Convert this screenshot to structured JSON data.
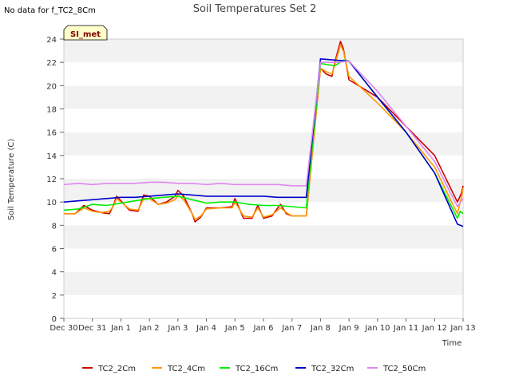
{
  "header": {
    "no_data_note": "No data for f_TC2_8Cm"
  },
  "chart_data": {
    "type": "line",
    "title": "Soil Temperatures Set 2",
    "xlabel": "Time",
    "ylabel": "Soil Temperature (C)",
    "ylim": [
      0,
      24
    ],
    "yticks": [
      0,
      2,
      4,
      6,
      8,
      10,
      12,
      14,
      16,
      18,
      20,
      22,
      24
    ],
    "xlim": [
      0,
      14
    ],
    "xtick_labels": [
      "Dec 30",
      "Dec 31",
      "Jan 1",
      "Jan 2",
      "Jan 3",
      "Jan 4",
      "Jan 5",
      "Jan 6",
      "Jan 7",
      "Jan 8",
      "Jan 9",
      "Jan 10",
      "Jan 11",
      "Jan 12",
      "Jan 13"
    ],
    "xtick_values": [
      0,
      1,
      2,
      3,
      4,
      5,
      6,
      7,
      8,
      9,
      10,
      11,
      12,
      13,
      14
    ],
    "grid": "horizontal alternating bands",
    "legend_position": "bottom",
    "annotation_box": {
      "label": "SI_met",
      "bg": "#ffffcc",
      "text_color": "#800000"
    },
    "series": [
      {
        "name": "TC2_2Cm",
        "color": "#cc0000",
        "x": [
          0.0,
          0.4,
          0.7,
          1.0,
          1.3,
          1.6,
          1.75,
          1.85,
          2.0,
          2.3,
          2.6,
          2.8,
          3.0,
          3.3,
          3.6,
          3.9,
          4.0,
          4.2,
          4.5,
          4.6,
          4.8,
          5.0,
          5.5,
          5.9,
          6.0,
          6.3,
          6.6,
          6.8,
          7.0,
          7.3,
          7.5,
          7.6,
          7.8,
          8.0,
          8.3,
          8.5,
          9.0,
          9.2,
          9.4,
          9.5,
          9.7,
          9.8,
          10.0,
          11.0,
          12.0,
          13.0,
          13.8,
          13.95,
          14.0
        ],
        "y": [
          9.0,
          9.0,
          9.7,
          9.3,
          9.1,
          9.0,
          9.8,
          10.5,
          10.1,
          9.3,
          9.2,
          10.6,
          10.5,
          9.8,
          10.0,
          10.5,
          11.0,
          10.5,
          9.0,
          8.3,
          8.7,
          9.5,
          9.5,
          9.6,
          10.3,
          8.6,
          8.6,
          9.7,
          8.6,
          8.8,
          9.5,
          9.8,
          9.0,
          8.8,
          8.8,
          8.8,
          21.5,
          21.0,
          20.8,
          22.0,
          23.8,
          23.2,
          20.5,
          19.0,
          16.5,
          14.0,
          10.0,
          10.8,
          11.4
        ]
      },
      {
        "name": "TC2_4Cm",
        "color": "#ff9900",
        "x": [
          0.0,
          0.4,
          0.7,
          1.0,
          1.3,
          1.6,
          1.75,
          1.85,
          2.0,
          2.3,
          2.6,
          2.8,
          3.0,
          3.3,
          3.6,
          3.9,
          4.0,
          4.2,
          4.5,
          4.6,
          4.8,
          5.0,
          5.5,
          5.9,
          6.0,
          6.3,
          6.6,
          6.8,
          7.0,
          7.3,
          7.5,
          7.6,
          7.8,
          8.0,
          8.3,
          8.5,
          9.0,
          9.2,
          9.4,
          9.5,
          9.7,
          9.8,
          10.0,
          11.0,
          12.0,
          13.0,
          13.8,
          13.95,
          14.0
        ],
        "y": [
          9.0,
          9.0,
          9.5,
          9.2,
          9.1,
          9.2,
          9.7,
          10.3,
          10.0,
          9.4,
          9.3,
          10.3,
          10.3,
          9.8,
          9.9,
          10.2,
          10.6,
          10.2,
          9.0,
          8.5,
          8.8,
          9.4,
          9.5,
          9.5,
          10.0,
          8.8,
          8.7,
          9.5,
          8.7,
          8.9,
          9.3,
          9.5,
          9.1,
          8.8,
          8.8,
          8.8,
          21.5,
          21.2,
          21.0,
          21.8,
          23.5,
          23.0,
          20.8,
          18.5,
          16.0,
          13.0,
          9.0,
          10.5,
          11.2
        ]
      },
      {
        "name": "TC2_16Cm",
        "color": "#00ee00",
        "x": [
          0.0,
          0.5,
          1.0,
          1.5,
          2.0,
          2.5,
          3.0,
          3.5,
          4.0,
          4.5,
          5.0,
          5.5,
          6.0,
          6.5,
          7.0,
          7.5,
          8.0,
          8.5,
          9.0,
          9.5,
          9.8,
          10.0,
          11.0,
          12.0,
          13.0,
          13.8,
          13.9,
          14.0
        ],
        "y": [
          9.3,
          9.4,
          9.8,
          9.7,
          9.9,
          10.1,
          10.3,
          10.4,
          10.5,
          10.2,
          9.9,
          10.0,
          10.0,
          9.8,
          9.7,
          9.7,
          9.6,
          9.5,
          21.9,
          21.7,
          22.2,
          22.1,
          19.0,
          16.0,
          12.5,
          8.6,
          9.2,
          9.0
        ]
      },
      {
        "name": "TC2_32Cm",
        "color": "#0000cc",
        "x": [
          0.0,
          0.5,
          1.0,
          1.5,
          2.0,
          2.5,
          3.0,
          3.5,
          4.0,
          4.5,
          5.0,
          5.5,
          6.0,
          6.5,
          7.0,
          7.5,
          8.0,
          8.5,
          9.0,
          9.5,
          10.0,
          11.0,
          12.0,
          13.0,
          13.8,
          14.0
        ],
        "y": [
          10.0,
          10.1,
          10.2,
          10.3,
          10.4,
          10.4,
          10.5,
          10.6,
          10.7,
          10.6,
          10.5,
          10.5,
          10.5,
          10.5,
          10.5,
          10.4,
          10.4,
          10.4,
          22.3,
          22.2,
          22.1,
          19.0,
          16.0,
          12.5,
          8.1,
          7.9
        ]
      },
      {
        "name": "TC2_50Cm",
        "color": "#dd88ee",
        "x": [
          0.0,
          0.5,
          1.0,
          1.5,
          2.0,
          2.5,
          3.0,
          3.5,
          4.0,
          4.5,
          5.0,
          5.5,
          6.0,
          6.5,
          7.0,
          7.5,
          8.0,
          8.5,
          9.0,
          9.5,
          10.0,
          11.0,
          12.0,
          13.0,
          13.8,
          14.0
        ],
        "y": [
          11.5,
          11.6,
          11.5,
          11.6,
          11.6,
          11.6,
          11.7,
          11.7,
          11.6,
          11.6,
          11.5,
          11.6,
          11.5,
          11.5,
          11.5,
          11.5,
          11.4,
          11.4,
          22.0,
          22.0,
          22.1,
          19.5,
          16.5,
          13.5,
          9.6,
          10.3
        ]
      }
    ]
  }
}
